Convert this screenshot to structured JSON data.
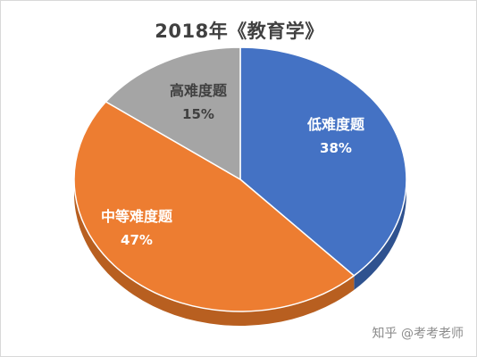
{
  "chart_data": {
    "type": "pie",
    "title": "2018年《教育学》",
    "slices": [
      {
        "label": "低难度题",
        "value": 38,
        "value_label": "38%",
        "color": "#4472c4",
        "side_color": "#2f528f",
        "label_color": "#ffffff"
      },
      {
        "label": "中等难度题",
        "value": 47,
        "value_label": "47%",
        "color": "#ed7d31",
        "side_color": "#b85f20",
        "label_color": "#ffffff"
      },
      {
        "label": "高难度题",
        "value": 15,
        "value_label": "15%",
        "color": "#a5a5a5",
        "side_color": "#7c7c7c",
        "label_color": "#404040"
      }
    ],
    "style": "3d"
  },
  "watermark": "知乎 @考考老师"
}
